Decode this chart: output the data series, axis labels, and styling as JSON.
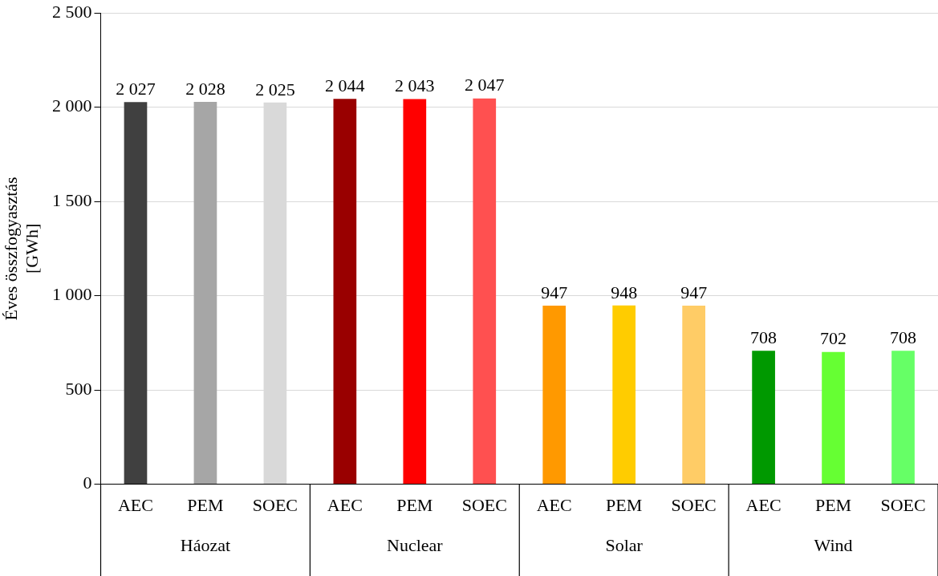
{
  "chart_data": {
    "type": "bar",
    "ylabel": "Éves összfogyasztás\n[GWh]",
    "categories": [
      "AEC",
      "PEM",
      "SOEC",
      "AEC",
      "PEM",
      "SOEC",
      "AEC",
      "PEM",
      "SOEC",
      "AEC",
      "PEM",
      "SOEC"
    ],
    "values": [
      2027,
      2028,
      2025,
      2044,
      2043,
      2047,
      947,
      948,
      947,
      708,
      702,
      708
    ],
    "colors": [
      "#404040",
      "#a6a6a6",
      "#d9d9d9",
      "#990000",
      "#ff0000",
      "#ff5050",
      "#ff9900",
      "#ffcc00",
      "#ffcc66",
      "#009900",
      "#66ff33",
      "#66ff66"
    ],
    "value_labels": [
      "2 027",
      "2 028",
      "2 025",
      "2 044",
      "2 043",
      "2 047",
      "947",
      "948",
      "947",
      "708",
      "702",
      "708"
    ],
    "annotations": [
      "Háozat",
      "Nuclear",
      "Solar",
      "Wind"
    ],
    "ylim": [
      0,
      2500
    ],
    "yticks": [
      0,
      {
        "value": 500,
        "label": "500"
      },
      {
        "value": 1000,
        "label": "1 000"
      },
      {
        "value": 1500,
        "label": "1 500"
      },
      {
        "value": 2000,
        "label": "2 000"
      },
      {
        "value": 2500,
        "label": "2 500"
      }
    ],
    "grid": "y",
    "legend": false
  }
}
